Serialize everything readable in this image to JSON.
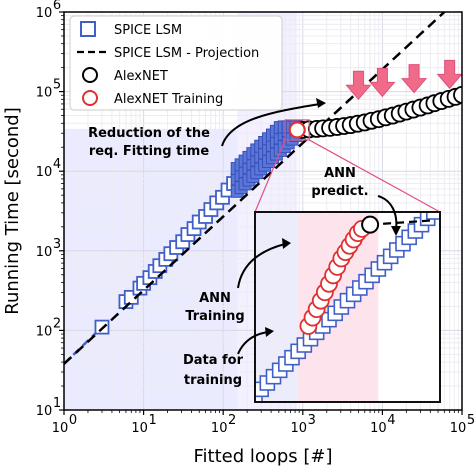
{
  "chart_data": {
    "type": "scatter",
    "xscale": "log",
    "yscale": "log",
    "xlim": [
      1,
      100000
    ],
    "ylim": [
      10,
      1000000
    ],
    "xlabel": "Fitted loops [#]",
    "ylabel": "Running Time [second]",
    "x_ticks": [
      {
        "base": "10",
        "exp": "0"
      },
      {
        "base": "10",
        "exp": "1"
      },
      {
        "base": "10",
        "exp": "2"
      },
      {
        "base": "10",
        "exp": "3"
      },
      {
        "base": "10",
        "exp": "4"
      },
      {
        "base": "10",
        "exp": "5"
      }
    ],
    "y_ticks": [
      {
        "base": "10",
        "exp": "1"
      },
      {
        "base": "10",
        "exp": "2"
      },
      {
        "base": "10",
        "exp": "3"
      },
      {
        "base": "10",
        "exp": "4"
      },
      {
        "base": "10",
        "exp": "5"
      },
      {
        "base": "10",
        "exp": "6"
      }
    ],
    "legend": {
      "placement": "top-left",
      "entries": [
        "SPICE LSM",
        "SPICE LSM - Projection",
        "AlexNET",
        "AlexNET Training"
      ]
    },
    "series": [
      {
        "name": "SPICE LSM",
        "marker": "square",
        "color": "#4060c8",
        "x": [
          3,
          6,
          7,
          9,
          10,
          12,
          14,
          16,
          19,
          22,
          26,
          31,
          36,
          43,
          50,
          60,
          70,
          83,
          98,
          115,
          135,
          160,
          190,
          220,
          260,
          300,
          350,
          420,
          500,
          590,
          700,
          820
        ],
        "y": [
          110,
          230,
          260,
          340,
          390,
          460,
          550,
          650,
          780,
          920,
          1100,
          1300,
          1600,
          1900,
          2300,
          2700,
          3300,
          4000,
          4700,
          5800,
          7000,
          8500,
          10000,
          12000,
          15000,
          18000,
          21000,
          24000,
          27000,
          29000,
          31000,
          34000
        ]
      },
      {
        "name": "SPICE LSM - Projection",
        "style": "dashed",
        "color": "#000000",
        "x": [
          1,
          60000
        ],
        "y": [
          38,
          1000000
        ]
      },
      {
        "name": "AlexNET",
        "marker": "circle",
        "color": "#000000",
        "x": [
          1000,
          1200,
          1500,
          1800,
          2200,
          2700,
          3300,
          4000,
          4900,
          6000,
          7300,
          9000,
          11000,
          13500,
          16500,
          20000,
          24500,
          30000,
          37000,
          45000,
          55000,
          68000,
          83000,
          100000
        ],
        "y": [
          33000,
          33500,
          34000,
          34500,
          35000,
          36000,
          37000,
          38000,
          39500,
          41000,
          43000,
          45000,
          47500,
          50000,
          53000,
          56000,
          59500,
          63000,
          67000,
          71500,
          76000,
          81000,
          86000,
          91000
        ]
      },
      {
        "name": "AlexNET Training",
        "marker": "circle",
        "color": "#e03030",
        "x": [
          850
        ],
        "y": [
          33000
        ]
      }
    ],
    "reduction_arrows_x": [
      5000,
      10000,
      25000,
      70000
    ],
    "annotations": {
      "reduction": [
        "Reduction of the",
        "req. Fitting time"
      ],
      "ann_predict": [
        "ANN",
        "predict."
      ],
      "ann_training": [
        "ANN",
        "Training"
      ],
      "data_training": [
        "Data for",
        "training"
      ]
    },
    "inset": {
      "xlim": [
        1,
        10
      ],
      "ylim": [
        1,
        10
      ],
      "lsm_x": [
        1.0,
        1.3,
        1.6,
        1.9,
        2.2,
        2.5,
        2.8,
        3.1,
        3.4,
        3.7,
        4.0,
        4.3,
        4.6,
        4.9,
        5.2,
        5.5,
        5.8,
        6.1,
        6.4,
        6.7,
        7.0,
        7.3,
        7.6,
        7.9,
        8.2,
        8.5,
        8.8,
        9.1,
        9.4,
        9.7
      ],
      "lsm_y": [
        1.3,
        1.6,
        1.9,
        2.2,
        2.5,
        2.8,
        3.1,
        3.4,
        3.7,
        4.0,
        4.3,
        4.6,
        4.9,
        5.2,
        5.5,
        5.8,
        6.1,
        6.4,
        6.7,
        7.0,
        7.3,
        7.6,
        7.9,
        8.2,
        8.5,
        8.8,
        9.1,
        9.4,
        9.7,
        10.0
      ],
      "train_x": [
        3.6,
        3.8,
        4.0,
        4.2,
        4.4,
        4.6,
        4.8,
        5.0,
        5.2,
        5.4,
        5.6,
        5.8,
        6.0,
        6.2
      ],
      "train_y": [
        4.6,
        5.0,
        5.4,
        5.8,
        6.2,
        6.6,
        7.0,
        7.4,
        7.8,
        8.1,
        8.4,
        8.7,
        9.0,
        9.2
      ],
      "pred_x": 6.6,
      "pred_y": 9.4,
      "dash_x": [
        6.6,
        9.6
      ],
      "dash_y": [
        9.4,
        9.6
      ]
    }
  }
}
